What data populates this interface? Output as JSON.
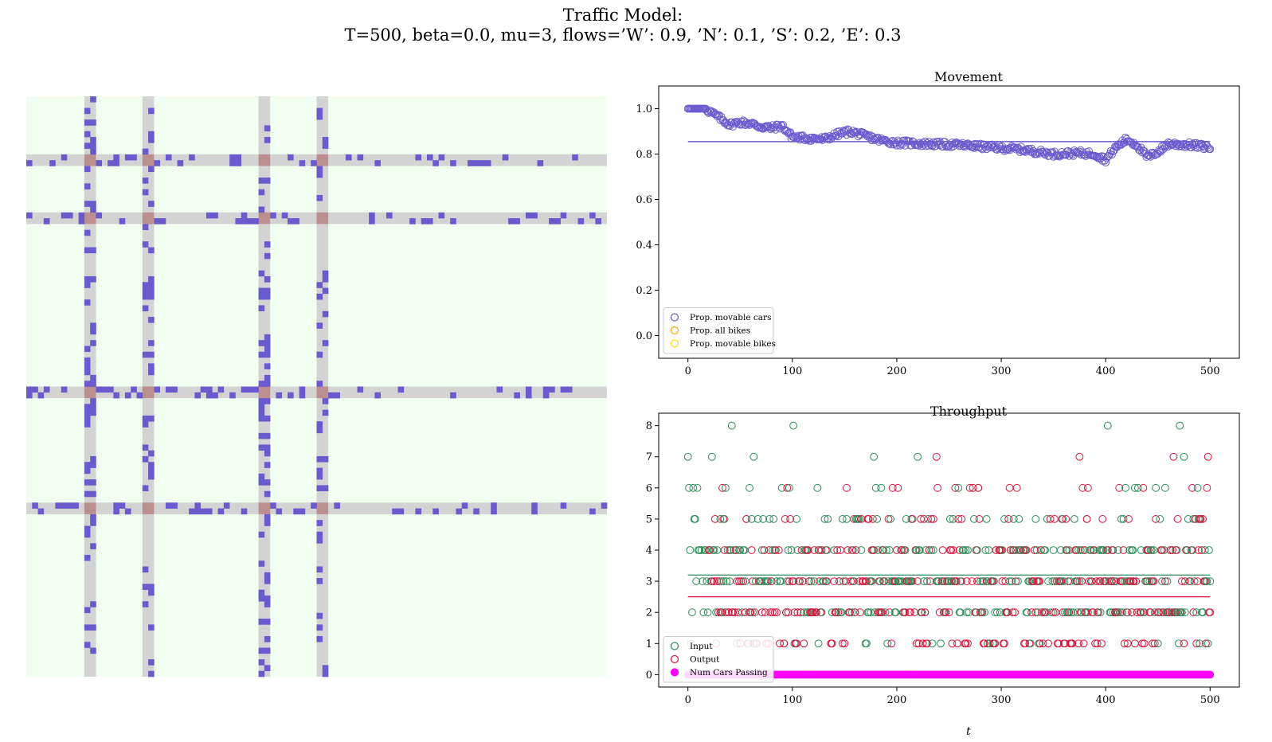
{
  "figure": {
    "title_line1": "Traffic Model:",
    "title_line2": "T=500, beta=0.0, mu=3, flows=’W’: 0.9, ’N’: 0.1, ’S’: 0.2, ’E’: 0.3"
  },
  "colors": {
    "grid_background": "#f0fff0",
    "road": "#d3d3d3",
    "intersection": "#bc8f8f",
    "car": "#6a5acd",
    "input": "#2e8b57",
    "output": "#dc143c",
    "passing": "#ff00ff",
    "all_bikes": "#ffa500",
    "movable_bikes": "#ffd700"
  },
  "grid": {
    "size": 100,
    "vertical_roads": [
      10,
      20,
      40,
      50
    ],
    "horizontal_roads": [
      10,
      20,
      50,
      70
    ],
    "car_density": 0.3
  },
  "chart_data": [
    {
      "type": "scatter",
      "title": "Movement",
      "xlim": [
        -28,
        528
      ],
      "ylim": [
        -0.1,
        1.1
      ],
      "xticks": [
        0,
        100,
        200,
        300,
        400,
        500
      ],
      "yticks": [
        0.0,
        0.2,
        0.4,
        0.6,
        0.8,
        1.0
      ],
      "xtick_labels": [
        "0",
        "100",
        "200",
        "300",
        "400",
        "500"
      ],
      "ytick_labels": [
        "0.0",
        "0.2",
        "0.4",
        "0.6",
        "0.8",
        "1.0"
      ],
      "legend_location": "lower-left",
      "legend": [
        "Prop. movable cars",
        "Prop. all bikes",
        "Prop. movable bikes"
      ],
      "mean_line": 0.855,
      "series_keyframes": [
        [
          0,
          1.0
        ],
        [
          17,
          1.0
        ],
        [
          20,
          0.99
        ],
        [
          30,
          0.96
        ],
        [
          40,
          0.93
        ],
        [
          50,
          0.94
        ],
        [
          60,
          0.935
        ],
        [
          70,
          0.92
        ],
        [
          80,
          0.915
        ],
        [
          90,
          0.925
        ],
        [
          95,
          0.9
        ],
        [
          100,
          0.875
        ],
        [
          115,
          0.87
        ],
        [
          130,
          0.865
        ],
        [
          145,
          0.89
        ],
        [
          155,
          0.9
        ],
        [
          170,
          0.88
        ],
        [
          185,
          0.86
        ],
        [
          200,
          0.85
        ],
        [
          230,
          0.845
        ],
        [
          260,
          0.84
        ],
        [
          290,
          0.83
        ],
        [
          320,
          0.82
        ],
        [
          350,
          0.8
        ],
        [
          375,
          0.805
        ],
        [
          390,
          0.8
        ],
        [
          400,
          0.775
        ],
        [
          410,
          0.83
        ],
        [
          420,
          0.865
        ],
        [
          430,
          0.84
        ],
        [
          440,
          0.785
        ],
        [
          450,
          0.81
        ],
        [
          460,
          0.845
        ],
        [
          480,
          0.84
        ],
        [
          500,
          0.83
        ]
      ]
    },
    {
      "type": "scatter",
      "title": "Throughput",
      "xlabel": "t",
      "xlim": [
        -28,
        528
      ],
      "ylim": [
        -0.4,
        8.4
      ],
      "xticks": [
        0,
        100,
        200,
        300,
        400,
        500
      ],
      "yticks": [
        0,
        1,
        2,
        3,
        4,
        5,
        6,
        7,
        8
      ],
      "xtick_labels": [
        "0",
        "100",
        "200",
        "300",
        "400",
        "500"
      ],
      "ytick_labels": [
        "0",
        "1",
        "2",
        "3",
        "4",
        "5",
        "6",
        "7",
        "8"
      ],
      "legend_location": "lower-left",
      "legend": [
        "Input",
        "Output",
        "Num Cars Passing"
      ],
      "input_mean": 3.2,
      "output_mean": 2.5,
      "passing_value": 0,
      "input_peaks": [
        [
          42,
          8
        ],
        [
          101,
          8
        ],
        [
          402,
          8
        ],
        [
          471,
          8
        ],
        [
          0,
          7
        ],
        [
          23,
          7
        ],
        [
          63,
          7
        ],
        [
          178,
          7
        ],
        [
          220,
          7
        ],
        [
          475,
          7
        ]
      ],
      "output_peaks": [
        [
          238,
          7
        ],
        [
          375,
          7
        ],
        [
          465,
          7
        ],
        [
          498,
          7
        ]
      ]
    }
  ]
}
